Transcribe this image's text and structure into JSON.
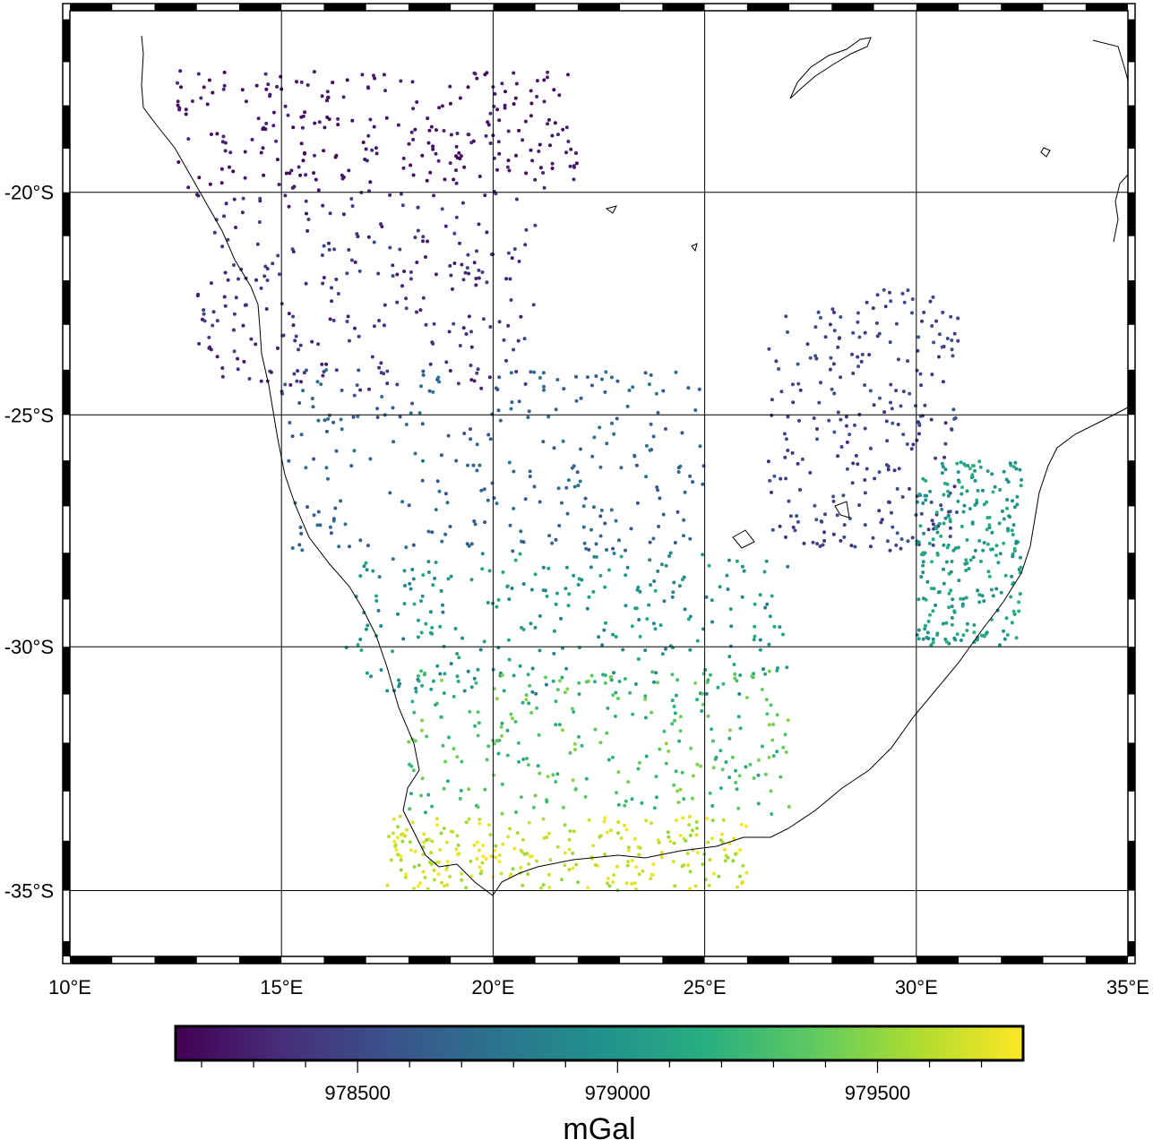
{
  "chart_data": {
    "type": "scatter",
    "description_of_marks": "gravity survey points along roads, colored by observed gravity",
    "x_axis": {
      "range": [
        10,
        35
      ],
      "ticks": [
        10,
        15,
        20,
        25,
        30,
        35
      ],
      "tick_labels": [
        "10°E",
        "15°E",
        "20°E",
        "25°E",
        "30°E",
        "35°E"
      ]
    },
    "y_axis": {
      "range": [
        -36.3,
        -15.8
      ],
      "ticks": [
        -20,
        -25,
        -30,
        -35
      ],
      "tick_labels": [
        "20°S",
        "25°S",
        "30°S",
        "35°S"
      ]
    },
    "grid": true,
    "colorbar": {
      "colormap": "viridis",
      "range": [
        978150,
        979780
      ],
      "ticks": [
        978500,
        979000,
        979500
      ],
      "tick_labels": [
        "978500",
        "979000",
        "979500"
      ],
      "label": "mGal"
    },
    "regions": [
      {
        "lon": [
          12.5,
          22
        ],
        "lat": [
          -17.2,
          -20
        ],
        "value": [
          978150,
          978350
        ]
      },
      {
        "lon": [
          13,
          21
        ],
        "lat": [
          -20,
          -24.5
        ],
        "value": [
          978250,
          978500
        ]
      },
      {
        "lon": [
          15,
          25
        ],
        "lat": [
          -24,
          -28
        ],
        "value": [
          978550,
          978800
        ]
      },
      {
        "lon": [
          26.5,
          31
        ],
        "lat": [
          -22.2,
          -28
        ],
        "value": [
          978350,
          978600
        ]
      },
      {
        "lon": [
          16.5,
          27
        ],
        "lat": [
          -28,
          -31
        ],
        "value": [
          978800,
          979150
        ]
      },
      {
        "lon": [
          18,
          27
        ],
        "lat": [
          -30.5,
          -33.5
        ],
        "value": [
          979100,
          979500
        ]
      },
      {
        "lon": [
          17.5,
          26
        ],
        "lat": [
          -33.5,
          -35
        ],
        "value": [
          979500,
          979780
        ]
      },
      {
        "lon": [
          30,
          32.5
        ],
        "lat": [
          -26,
          -30
        ],
        "value": [
          978900,
          979200
        ]
      }
    ]
  }
}
